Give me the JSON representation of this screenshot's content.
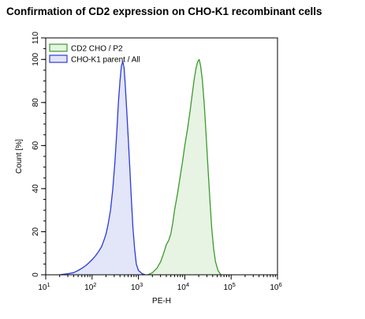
{
  "chart_data": {
    "type": "area",
    "title": "Confirmation of CD2 expression on CHO-K1 recombinant cells",
    "xlabel": "PE-H",
    "ylabel": "Count [%]",
    "xscale": "log",
    "xlim": [
      10,
      1000000
    ],
    "ylim": [
      0,
      110
    ],
    "x_ticks": [
      {
        "value": 10,
        "base": "10",
        "exp": "1"
      },
      {
        "value": 100,
        "base": "10",
        "exp": "2"
      },
      {
        "value": 1000,
        "base": "10",
        "exp": "3"
      },
      {
        "value": 10000,
        "base": "10",
        "exp": "4"
      },
      {
        "value": 100000,
        "base": "10",
        "exp": "5"
      },
      {
        "value": 1000000,
        "base": "10",
        "exp": "6"
      }
    ],
    "y_ticks": [
      0,
      20,
      40,
      60,
      80,
      100,
      110
    ],
    "legend_position": "top-left",
    "series": [
      {
        "name": "CD2 CHO / P2",
        "stroke": "#3a9a2c",
        "fill": "#e6f2e2",
        "points": [
          [
            1600,
            0
          ],
          [
            2000,
            1
          ],
          [
            2500,
            3
          ],
          [
            3000,
            6
          ],
          [
            3500,
            10
          ],
          [
            4000,
            14
          ],
          [
            4500,
            16
          ],
          [
            5000,
            19
          ],
          [
            5500,
            24
          ],
          [
            6000,
            30
          ],
          [
            7000,
            38
          ],
          [
            8000,
            46
          ],
          [
            9000,
            53
          ],
          [
            10000,
            60
          ],
          [
            11500,
            68
          ],
          [
            13000,
            76
          ],
          [
            14500,
            84
          ],
          [
            16000,
            91
          ],
          [
            17500,
            96
          ],
          [
            19000,
            99
          ],
          [
            20500,
            100
          ],
          [
            22000,
            97
          ],
          [
            24000,
            90
          ],
          [
            26500,
            78
          ],
          [
            29000,
            64
          ],
          [
            32000,
            48
          ],
          [
            35000,
            34
          ],
          [
            38000,
            22
          ],
          [
            42000,
            12
          ],
          [
            46000,
            6
          ],
          [
            52000,
            2
          ],
          [
            60000,
            0
          ]
        ]
      },
      {
        "name": "CHO-K1 parent / All",
        "stroke": "#2b3bd8",
        "fill": "#e2e4f8",
        "points": [
          [
            20,
            0
          ],
          [
            30,
            0.5
          ],
          [
            40,
            1
          ],
          [
            50,
            2
          ],
          [
            60,
            3
          ],
          [
            70,
            4
          ],
          [
            80,
            5
          ],
          [
            100,
            7
          ],
          [
            120,
            9
          ],
          [
            140,
            11
          ],
          [
            160,
            13
          ],
          [
            180,
            16
          ],
          [
            200,
            19
          ],
          [
            220,
            23
          ],
          [
            250,
            30
          ],
          [
            280,
            40
          ],
          [
            310,
            52
          ],
          [
            340,
            66
          ],
          [
            370,
            80
          ],
          [
            400,
            90
          ],
          [
            430,
            97
          ],
          [
            460,
            99
          ],
          [
            490,
            96
          ],
          [
            520,
            88
          ],
          [
            560,
            76
          ],
          [
            600,
            64
          ],
          [
            650,
            50
          ],
          [
            700,
            36
          ],
          [
            760,
            22
          ],
          [
            830,
            12
          ],
          [
            900,
            5
          ],
          [
            1000,
            2
          ],
          [
            1200,
            0.5
          ],
          [
            1400,
            0
          ]
        ]
      }
    ]
  }
}
